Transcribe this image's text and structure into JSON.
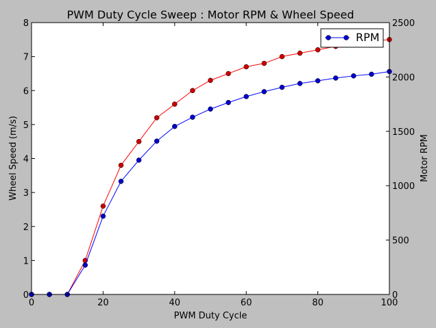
{
  "chart_data": {
    "type": "line",
    "title": "PWM Duty Cycle Sweep : Motor RPM & Wheel Speed",
    "xlabel": "PWM Duty Cycle",
    "ylabel_left": "Wheel Speed (m/s)",
    "ylabel_right": "Motor RPM",
    "xlim": [
      0,
      100
    ],
    "ylim_left": [
      0,
      8
    ],
    "ylim_right": [
      0,
      2500
    ],
    "x_ticks": [
      "0",
      "20",
      "40",
      "60",
      "80",
      "100"
    ],
    "y_left_ticks": [
      "0",
      "1",
      "2",
      "3",
      "4",
      "5",
      "6",
      "7",
      "8"
    ],
    "y_right_ticks": [
      "0",
      "500",
      "1000",
      "1500",
      "2000",
      "2500"
    ],
    "x": [
      0,
      5,
      10,
      15,
      20,
      25,
      30,
      35,
      40,
      45,
      50,
      55,
      60,
      65,
      70,
      75,
      80,
      85,
      90,
      95,
      100
    ],
    "series": [
      {
        "name": "",
        "axis": "left",
        "color": "#ff0000",
        "marker_color": "#cc0000",
        "values": [
          0,
          0,
          0,
          1.0,
          2.6,
          3.8,
          4.5,
          5.2,
          5.6,
          6.0,
          6.3,
          6.5,
          6.7,
          6.8,
          7.0,
          7.1,
          7.2,
          7.3,
          7.4,
          7.45,
          7.5
        ]
      },
      {
        "name": "RPM",
        "axis": "right",
        "color": "#0000ff",
        "marker_color": "#0000cc",
        "values": [
          0,
          0,
          0,
          270,
          720,
          1040,
          1235,
          1410,
          1545,
          1630,
          1705,
          1765,
          1820,
          1865,
          1905,
          1940,
          1965,
          1990,
          2010,
          2025,
          2050
        ]
      }
    ],
    "legend": {
      "placement": "top-right",
      "entries": [
        "RPM"
      ]
    },
    "grid": false
  }
}
